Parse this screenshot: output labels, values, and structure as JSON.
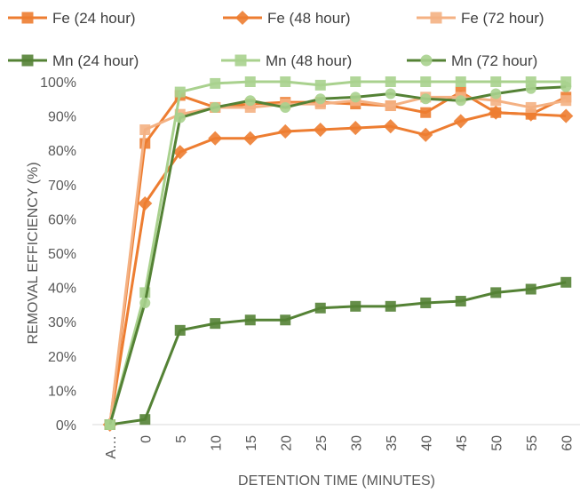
{
  "chart_data": {
    "type": "line",
    "xlabel": "DETENTION TIME (MINUTES)",
    "ylabel": "REMOVAL EFFICIENCY (%)",
    "categories": [
      "A…",
      "0",
      "5",
      "10",
      "15",
      "20",
      "25",
      "30",
      "35",
      "40",
      "45",
      "50",
      "55",
      "60"
    ],
    "ylim": [
      0,
      100
    ],
    "yticks": [
      "0%",
      "10%",
      "20%",
      "30%",
      "40%",
      "50%",
      "60%",
      "70%",
      "80%",
      "90%",
      "100%"
    ],
    "grid": false,
    "legend_position": "top",
    "series": [
      {
        "name": "Fe (24 hour)",
        "color": "#ED7D31",
        "opacity": 1.0,
        "marker": "square",
        "values": [
          0,
          82,
          96,
          92.5,
          93.5,
          94,
          94,
          93.5,
          93,
          91,
          97,
          91,
          90.5,
          95.5
        ]
      },
      {
        "name": "Fe (48 hour)",
        "color": "#ED7D31",
        "opacity": 1.0,
        "marker": "diamond",
        "values": [
          0,
          64.5,
          79.5,
          83.5,
          83.5,
          85.5,
          86,
          86.5,
          87,
          84.5,
          88.5,
          91,
          90.5,
          90
        ]
      },
      {
        "name": "Fe (72 hour)",
        "color": "#F4B183",
        "opacity": 1.0,
        "marker": "square",
        "values": [
          0,
          86,
          90.5,
          92.5,
          92.5,
          93.5,
          93.5,
          94.5,
          93,
          95.5,
          95.5,
          94.5,
          92.5,
          94.5
        ]
      },
      {
        "name": "Mn (24 hour)",
        "color": "#548235",
        "opacity": 1.0,
        "marker": "square",
        "values": [
          0,
          1.5,
          27.5,
          29.5,
          30.5,
          30.5,
          34,
          34.5,
          34.5,
          35.5,
          36,
          38.5,
          39.5,
          41.5
        ]
      },
      {
        "name": "Mn (48 hour)",
        "color": "#A9D18E",
        "opacity": 1.0,
        "marker": "square",
        "values": [
          0,
          38.5,
          97,
          99.5,
          100,
          100,
          99,
          100,
          100,
          100,
          100,
          100,
          100,
          100
        ]
      },
      {
        "name": "Mn (72 hour)",
        "color": "#548235",
        "opacity": 1.0,
        "marker": "circle",
        "marker_color": "#A9D18E",
        "values": [
          0,
          35.5,
          89.5,
          92.5,
          94.5,
          92.5,
          95,
          95.5,
          96.5,
          95,
          94.5,
          96.5,
          98,
          98.5
        ]
      }
    ]
  }
}
